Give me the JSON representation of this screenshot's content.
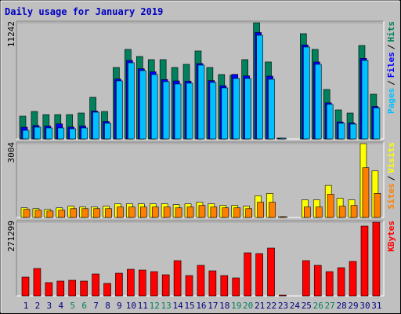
{
  "chart_data": {
    "type": "bar",
    "title": "Daily usage for January 2019",
    "categories": [
      "1",
      "2",
      "3",
      "4",
      "5",
      "6",
      "7",
      "8",
      "9",
      "10",
      "11",
      "12",
      "13",
      "14",
      "15",
      "16",
      "17",
      "18",
      "19",
      "20",
      "21",
      "22",
      "23",
      "24",
      "25",
      "26",
      "27",
      "28",
      "29",
      "30",
      "31"
    ],
    "category_label_colors": [
      "#000080",
      "#000080",
      "#000080",
      "#000080",
      "#00805c",
      "#00805c",
      "#000080",
      "#000080",
      "#000080",
      "#000080",
      "#000080",
      "#00805c",
      "#00805c",
      "#000080",
      "#000080",
      "#000080",
      "#000080",
      "#000080",
      "#00805c",
      "#00805c",
      "#000080",
      "#000080",
      "#000080",
      "#000080",
      "#000080",
      "#00805c",
      "#00805c",
      "#000080",
      "#000080",
      "#000080",
      "#000080"
    ],
    "legend_separator": "/",
    "panels": [
      {
        "ylim": [
          0,
          11242
        ],
        "yticks": [
          11242
        ],
        "series": [
          {
            "name": "Hits",
            "color": "#00805c",
            "values": [
              2204,
              2660,
              2356,
              2356,
              2356,
              2508,
              4028,
              2660,
              6916,
              8664,
              7980,
              7676,
              7676,
              6916,
              7220,
              8512,
              6916,
              6232,
              6156,
              7676,
              11242,
              7448,
              60,
              null,
              10184,
              8664,
              4788,
              2812,
              2508,
              9044,
              4332
            ]
          },
          {
            "name": "Files",
            "color": "#0000ff",
            "values": [
              1140,
              1300,
              1250,
              1460,
              1150,
              1250,
              2700,
              1700,
              5800,
              7600,
              6800,
              6500,
              5750,
              5620,
              5600,
              7300,
              5650,
              5150,
              6250,
              6100,
              10300,
              6080,
              50,
              null,
              9100,
              7450,
              3500,
              1650,
              1550,
              7800,
              3150
            ]
          },
          {
            "name": "Pages",
            "color": "#00c0ff",
            "values": [
              836,
              1140,
              1064,
              1064,
              988,
              1064,
              2584,
              1520,
              5624,
              7372,
              6612,
              6232,
              5548,
              5320,
              5396,
              7144,
              5472,
              4940,
              5852,
              5852,
              10032,
              5776,
              40,
              null,
              8892,
              7220,
              3344,
              1520,
              1444,
              7600,
              3002
            ]
          }
        ]
      },
      {
        "ylim": [
          0,
          3004
        ],
        "yticks": [
          3004
        ],
        "series": [
          {
            "name": "Visits",
            "color": "#ffff00",
            "values": [
              392,
              359,
              327,
              392,
              457,
              424,
              424,
              457,
              555,
              555,
              555,
              555,
              555,
              522,
              555,
              620,
              555,
              490,
              490,
              457,
              882,
              980,
              20,
              null,
              718,
              718,
              1306,
              784,
              718,
              3004,
              1894
            ]
          },
          {
            "name": "Sites",
            "color": "#ff8000",
            "values": [
              327,
              294,
              261,
              294,
              359,
              359,
              359,
              359,
              424,
              424,
              424,
              424,
              424,
              392,
              424,
              490,
              424,
              392,
              392,
              359,
              620,
              620,
              15,
              null,
              424,
              424,
              947,
              457,
              490,
              2024,
              980
            ]
          }
        ]
      },
      {
        "ylim": [
          0,
          271299
        ],
        "yticks": [
          271299
        ],
        "series": [
          {
            "name": "KBytes",
            "color": "#ff0000",
            "values": [
              69264,
              101010,
              49062,
              54834,
              57720,
              54834,
              80808,
              46176,
              83694,
              98124,
              95238,
              89466,
              77922,
              129870,
              75036,
              112554,
              92352,
              75036,
              66378,
              158730,
              155844,
              176046,
              600,
              null,
              129870,
              112554,
              89466,
              103896,
              126984,
              256854,
              271299
            ]
          }
        ]
      }
    ]
  }
}
